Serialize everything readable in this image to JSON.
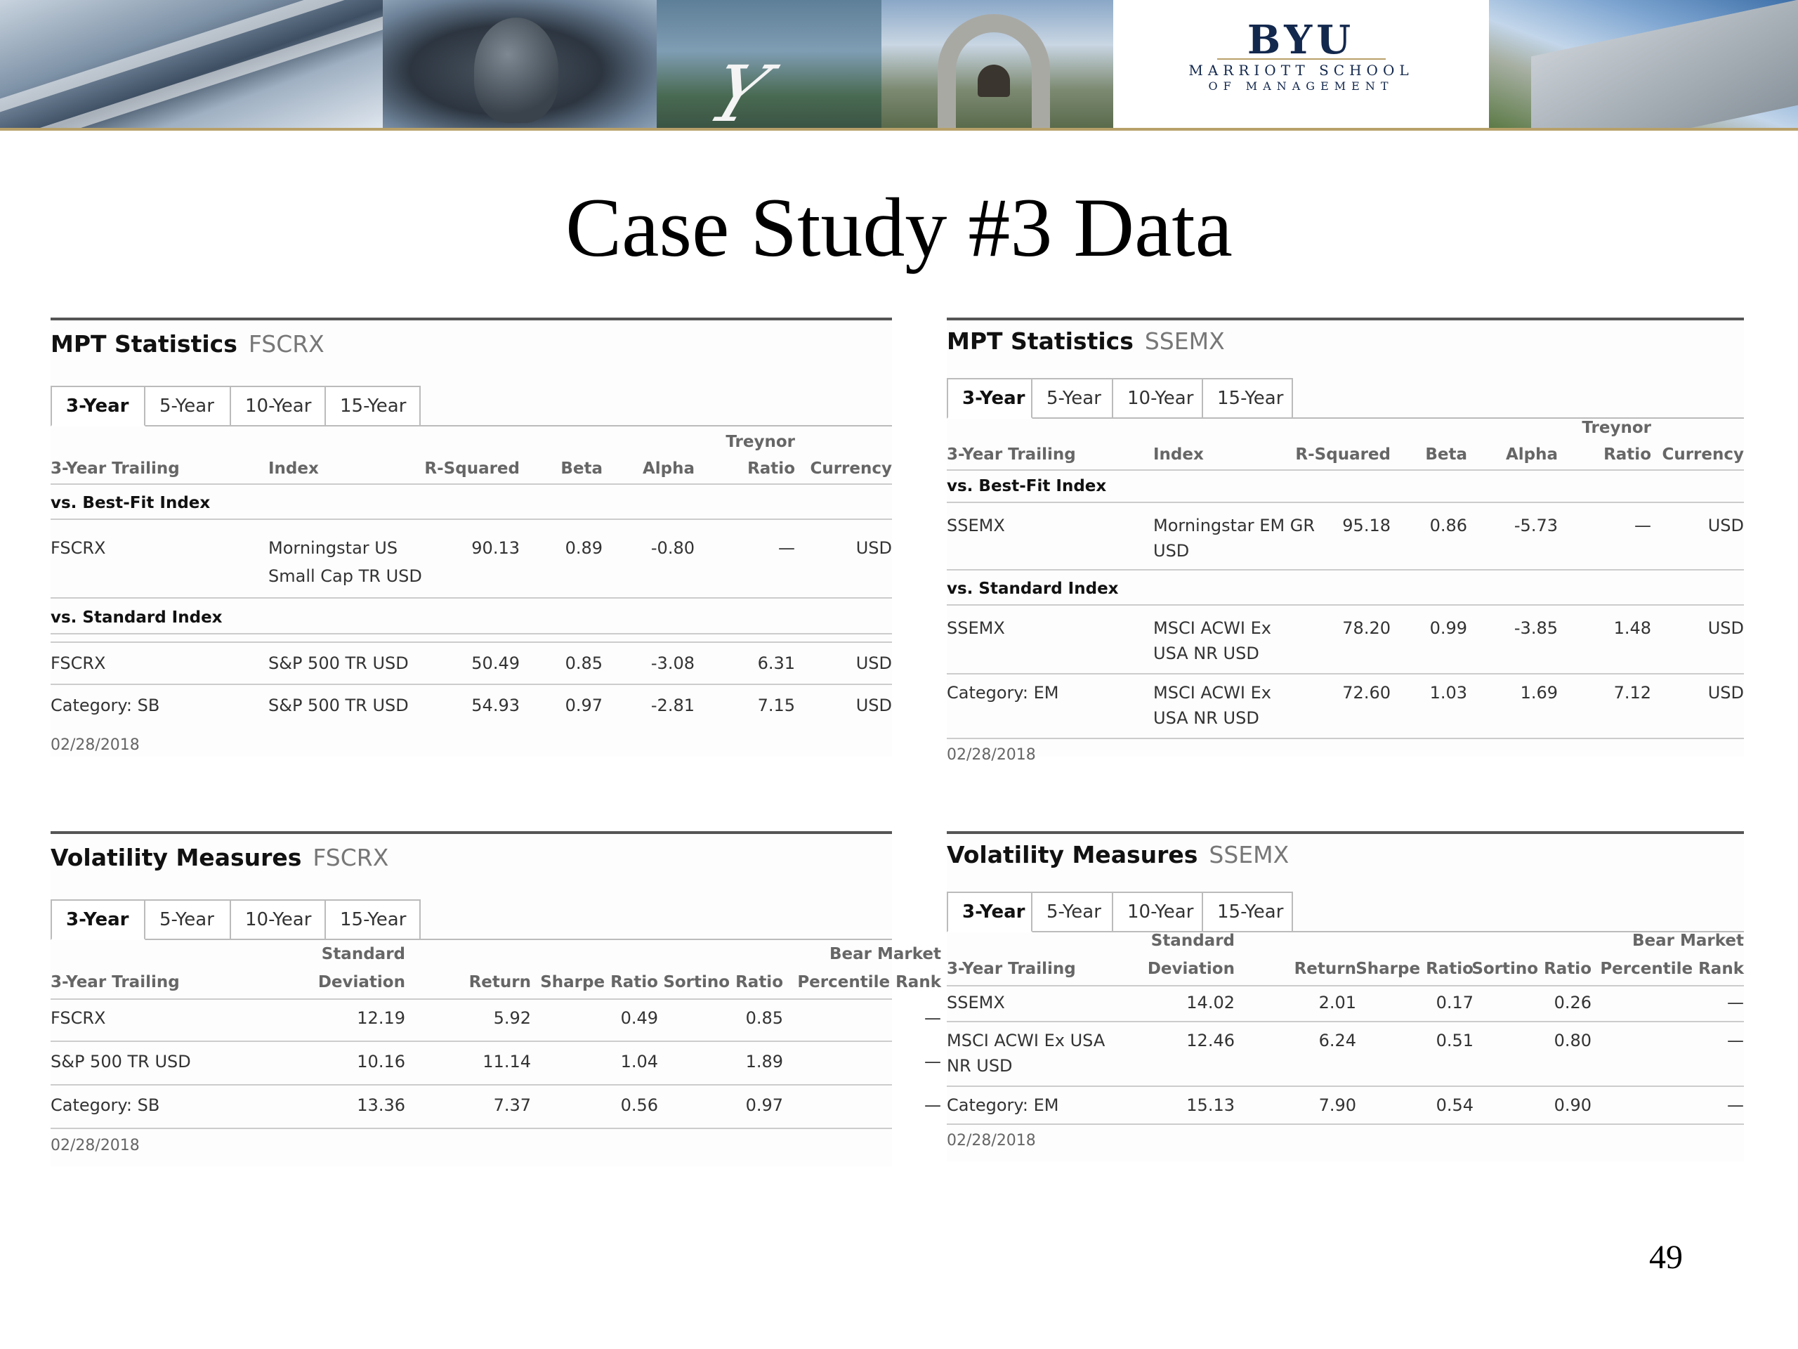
{
  "banner": {
    "logo": {
      "name": "BYU",
      "line1": "MARRIOTT SCHOOL",
      "line2": "OF MANAGEMENT"
    }
  },
  "slide": {
    "title": "Case Study #3 Data",
    "page_number": "49"
  },
  "tabs": [
    "3-Year",
    "5-Year",
    "10-Year",
    "15-Year"
  ],
  "mpt_fscrx": {
    "title": "MPT Statistics",
    "ticker": "FSCRX",
    "headers": {
      "trailing": "3-Year Trailing",
      "index": "Index",
      "rsq": "R-Squared",
      "beta": "Beta",
      "alpha": "Alpha",
      "treynor1": "Treynor",
      "treynor2": "Ratio",
      "currency": "Currency"
    },
    "sections": {
      "best_fit": "vs. Best-Fit Index",
      "standard": "vs. Standard Index"
    },
    "rows": [
      {
        "name": "FSCRX",
        "index1": "Morningstar US",
        "index2": "Small Cap TR USD",
        "rsq": "90.13",
        "beta": "0.89",
        "alpha": "-0.80",
        "treynor": "—",
        "currency": "USD"
      },
      {
        "name": "FSCRX",
        "index1": "S&P 500 TR USD",
        "index2": "",
        "rsq": "50.49",
        "beta": "0.85",
        "alpha": "-3.08",
        "treynor": "6.31",
        "currency": "USD"
      },
      {
        "name": "Category: SB",
        "index1": "S&P 500 TR USD",
        "index2": "",
        "rsq": "54.93",
        "beta": "0.97",
        "alpha": "-2.81",
        "treynor": "7.15",
        "currency": "USD"
      }
    ],
    "date": "02/28/2018"
  },
  "mpt_ssemx": {
    "title": "MPT Statistics",
    "ticker": "SSEMX",
    "headers": {
      "trailing": "3-Year Trailing",
      "index": "Index",
      "rsq": "R-Squared",
      "beta": "Beta",
      "alpha": "Alpha",
      "treynor1": "Treynor",
      "treynor2": "Ratio",
      "currency": "Currency"
    },
    "sections": {
      "best_fit": "vs. Best-Fit Index",
      "standard": "vs. Standard Index"
    },
    "rows": [
      {
        "name": "SSEMX",
        "index1": "Morningstar EM GR",
        "index2": "USD",
        "rsq": "95.18",
        "beta": "0.86",
        "alpha": "-5.73",
        "treynor": "—",
        "currency": "USD"
      },
      {
        "name": "SSEMX",
        "index1": "MSCI ACWI Ex",
        "index2": "USA NR USD",
        "rsq": "78.20",
        "beta": "0.99",
        "alpha": "-3.85",
        "treynor": "1.48",
        "currency": "USD"
      },
      {
        "name": "Category: EM",
        "index1": "MSCI ACWI Ex",
        "index2": "USA NR USD",
        "rsq": "72.60",
        "beta": "1.03",
        "alpha": "1.69",
        "treynor": "7.12",
        "currency": "USD"
      }
    ],
    "date": "02/28/2018"
  },
  "vol_fscrx": {
    "title": "Volatility Measures",
    "ticker": "FSCRX",
    "headers": {
      "trailing": "3-Year Trailing",
      "std1": "Standard",
      "std2": "Deviation",
      "ret": "Return",
      "sharpe": "Sharpe Ratio",
      "sortino": "Sortino Ratio",
      "bear1": "Bear Market",
      "bear2": "Percentile Rank"
    },
    "rows": [
      {
        "name1": "FSCRX",
        "name2": "",
        "std": "12.19",
        "ret": "5.92",
        "sharpe": "0.49",
        "sortino": "0.85",
        "bear": "—"
      },
      {
        "name1": "S&P 500 TR USD",
        "name2": "",
        "std": "10.16",
        "ret": "11.14",
        "sharpe": "1.04",
        "sortino": "1.89",
        "bear": "—"
      },
      {
        "name1": "Category: SB",
        "name2": "",
        "std": "13.36",
        "ret": "7.37",
        "sharpe": "0.56",
        "sortino": "0.97",
        "bear": "—"
      }
    ],
    "date": "02/28/2018"
  },
  "vol_ssemx": {
    "title": "Volatility Measures",
    "ticker": "SSEMX",
    "headers": {
      "trailing": "3-Year Trailing",
      "std1": "Standard",
      "std2": "Deviation",
      "ret": "Return",
      "sharpe": "Sharpe Ratio",
      "sortino": "Sortino Ratio",
      "bear1": "Bear Market",
      "bear2": "Percentile Rank"
    },
    "rows": [
      {
        "name1": "SSEMX",
        "name2": "",
        "std": "14.02",
        "ret": "2.01",
        "sharpe": "0.17",
        "sortino": "0.26",
        "bear": "—"
      },
      {
        "name1": "MSCI ACWI Ex USA",
        "name2": "NR USD",
        "std": "12.46",
        "ret": "6.24",
        "sharpe": "0.51",
        "sortino": "0.80",
        "bear": "—"
      },
      {
        "name1": "Category: EM",
        "name2": "",
        "std": "15.13",
        "ret": "7.90",
        "sharpe": "0.54",
        "sortino": "0.90",
        "bear": "—"
      }
    ],
    "date": "02/28/2018"
  }
}
